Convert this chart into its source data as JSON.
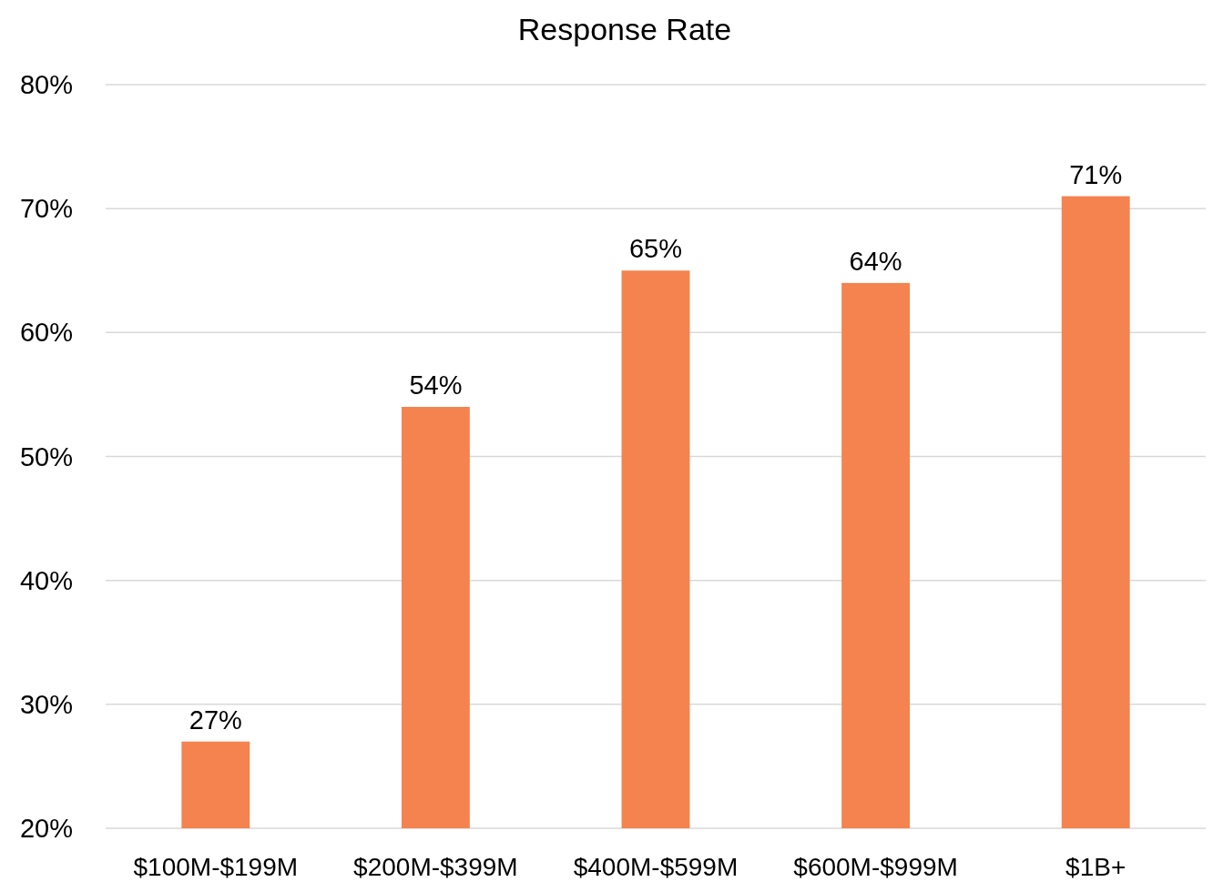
{
  "chart_data": {
    "type": "bar",
    "title": "Response Rate",
    "categories": [
      "$100M-$199M",
      "$200M-$399M",
      "$400M-$599M",
      "$600M-$999M",
      "$1B+"
    ],
    "values": [
      27,
      54,
      65,
      64,
      71
    ],
    "value_labels": [
      "27%",
      "54%",
      "65%",
      "64%",
      "71%"
    ],
    "color": "#f4834f",
    "ylim": [
      20,
      80
    ],
    "yticks": [
      {
        "value": 20,
        "label": "20%"
      },
      {
        "value": 30,
        "label": "30%"
      },
      {
        "value": 40,
        "label": "40%"
      },
      {
        "value": 50,
        "label": "50%"
      },
      {
        "value": 60,
        "label": "60%"
      },
      {
        "value": 70,
        "label": "70%"
      },
      {
        "value": 80,
        "label": "80%"
      }
    ],
    "grid": "y"
  }
}
